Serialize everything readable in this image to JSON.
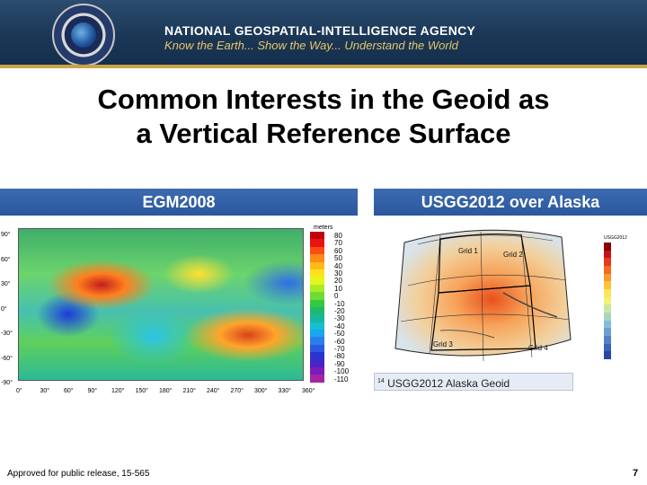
{
  "header": {
    "agency": "NATIONAL GEOSPATIAL-INTELLIGENCE AGENCY",
    "tagline": "Know the Earth... Show the Way... Understand the World",
    "seal_icon": "nga-seal-icon"
  },
  "title": {
    "line1": "Common Interests in the Geoid as",
    "line2": "a Vertical Reference Surface"
  },
  "left_panel": {
    "label": "EGM2008",
    "lat_labels": [
      "90°",
      "60°",
      "30°",
      "0°",
      "-30°",
      "-60°",
      "-90°"
    ],
    "lon_labels": [
      "0°",
      "30°",
      "60°",
      "90°",
      "120°",
      "150°",
      "180°",
      "210°",
      "240°",
      "270°",
      "300°",
      "330°",
      "360°"
    ],
    "colorbar_title": "meters",
    "colorbar_values": [
      "80",
      "70",
      "60",
      "50",
      "40",
      "30",
      "20",
      "10",
      "0",
      "-10",
      "-20",
      "-30",
      "-40",
      "-50",
      "-60",
      "-70",
      "-80",
      "-90",
      "-100",
      "-110"
    ],
    "colorbar_colors": [
      "#c2000b",
      "#e8140f",
      "#ff4b13",
      "#ff8a16",
      "#ffba1a",
      "#ffe21c",
      "#e6f51c",
      "#aaeb24",
      "#6fdc32",
      "#35c941",
      "#1fb96c",
      "#17b79e",
      "#14bfd2",
      "#1aa6f0",
      "#2a7fea",
      "#2d59de",
      "#2a35cf",
      "#4b22c4",
      "#7c1cb8",
      "#a524a5"
    ]
  },
  "right_panel": {
    "label": "USGG2012 over Alaska",
    "grid_labels": [
      "Grid 1",
      "Grid 2",
      "Grid 3",
      "Grid 4"
    ],
    "legend_title": "USGG2012",
    "legend_colors": [
      "#8b0000",
      "#c4121b",
      "#e8381b",
      "#f56a1f",
      "#fa9a2b",
      "#fcc43b",
      "#fde65c",
      "#f0f27c",
      "#cde6a0",
      "#a8d4c4",
      "#86bcd9",
      "#6aa0d2",
      "#5183c6",
      "#3b64b8",
      "#2a46a5"
    ],
    "caption_number": "14",
    "caption_text": "USGG2012 Alaska Geoid"
  },
  "footer": {
    "release": "Approved for public release, 15-565",
    "page_number": "7"
  }
}
